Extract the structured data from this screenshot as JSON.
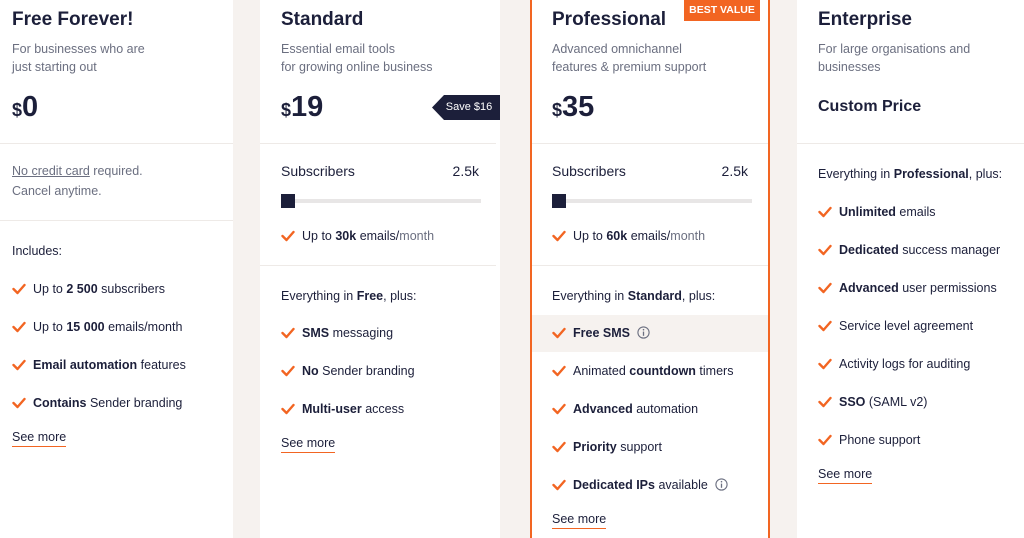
{
  "plans": [
    {
      "name": "Free Forever!",
      "description": [
        "For businesses who are",
        "just starting out"
      ],
      "currency": "$",
      "amount": "0",
      "note": [
        [
          {
            "text": "No credit card",
            "style": "underline"
          },
          {
            "text": " required."
          }
        ],
        [
          {
            "text": "Cancel anytime."
          }
        ]
      ],
      "features_heading": [
        {
          "text": "Includes:"
        }
      ],
      "features": [
        [
          {
            "text": "Up to "
          },
          {
            "text": "2 500",
            "style": "bold"
          },
          {
            "text": " subscribers"
          }
        ],
        [
          {
            "text": "Up to "
          },
          {
            "text": "15 000",
            "style": "bold"
          },
          {
            "text": " emails/month"
          }
        ],
        [
          {
            "text": "Email automation",
            "style": "bold"
          },
          {
            "text": " features"
          }
        ],
        [
          {
            "text": "Contains",
            "style": "bold"
          },
          {
            "text": " Sender branding"
          }
        ]
      ],
      "link": "See more"
    },
    {
      "name": "Standard",
      "description": [
        "Essential email tools",
        "for growing online business"
      ],
      "currency": "$",
      "amount": "19",
      "save_tag": "Save $16",
      "slider": {
        "label": "Subscribers",
        "value": "2.5k"
      },
      "emails": [
        {
          "text": "Up to "
        },
        {
          "text": "30k",
          "style": "bold"
        },
        {
          "text": " emails/"
        },
        {
          "text": "month",
          "style": "muted"
        }
      ],
      "features_heading": [
        {
          "text": "Everything in "
        },
        {
          "text": "Free",
          "style": "bold"
        },
        {
          "text": ", plus:"
        }
      ],
      "features": [
        [
          {
            "text": "SMS",
            "style": "bold"
          },
          {
            "text": " messaging"
          }
        ],
        [
          {
            "text": "No",
            "style": "bold"
          },
          {
            "text": " Sender branding"
          }
        ],
        [
          {
            "text": "Multi-user",
            "style": "bold"
          },
          {
            "text": " access"
          }
        ]
      ],
      "link": "See more"
    },
    {
      "name": "Professional",
      "badge": "BEST VALUE",
      "description": [
        "Advanced omnichannel",
        "features & premium support"
      ],
      "currency": "$",
      "amount": "35",
      "slider": {
        "label": "Subscribers",
        "value": "2.5k"
      },
      "emails": [
        {
          "text": "Up to "
        },
        {
          "text": "60k",
          "style": "bold"
        },
        {
          "text": " emails/"
        },
        {
          "text": "month",
          "style": "muted"
        }
      ],
      "features_heading": [
        {
          "text": "Everything in "
        },
        {
          "text": "Standard",
          "style": "bold"
        },
        {
          "text": ", plus:"
        }
      ],
      "features": [
        [
          {
            "text": "Free SMS",
            "style": "bold",
            "info": true,
            "highlighted": true
          }
        ],
        [
          {
            "text": "Animated "
          },
          {
            "text": "countdown",
            "style": "bold"
          },
          {
            "text": " timers"
          }
        ],
        [
          {
            "text": "Advanced",
            "style": "bold"
          },
          {
            "text": " automation"
          }
        ],
        [
          {
            "text": "Priority",
            "style": "bold"
          },
          {
            "text": " support"
          }
        ],
        [
          {
            "text": "Dedicated IPs",
            "style": "bold"
          },
          {
            "text": " available",
            "info": true
          }
        ]
      ],
      "link": "See more"
    },
    {
      "name": "Enterprise",
      "description": [
        "For large organisations and",
        "businesses"
      ],
      "price_text": "Custom Price",
      "features_heading": [
        {
          "text": "Everything in "
        },
        {
          "text": "Professional",
          "style": "bold"
        },
        {
          "text": ", plus:"
        }
      ],
      "features": [
        [
          {
            "text": "Unlimited",
            "style": "bold"
          },
          {
            "text": " emails"
          }
        ],
        [
          {
            "text": "Dedicated",
            "style": "bold"
          },
          {
            "text": " success manager"
          }
        ],
        [
          {
            "text": "Advanced",
            "style": "bold"
          },
          {
            "text": " user permissions"
          }
        ],
        [
          {
            "text": "Service level agreement"
          }
        ],
        [
          {
            "text": "Activity logs for auditing"
          }
        ],
        [
          {
            "text": "SSO",
            "style": "bold"
          },
          {
            "text": " (SAML v2)"
          }
        ],
        [
          {
            "text": "Phone support"
          }
        ]
      ],
      "link": "See more"
    }
  ]
}
